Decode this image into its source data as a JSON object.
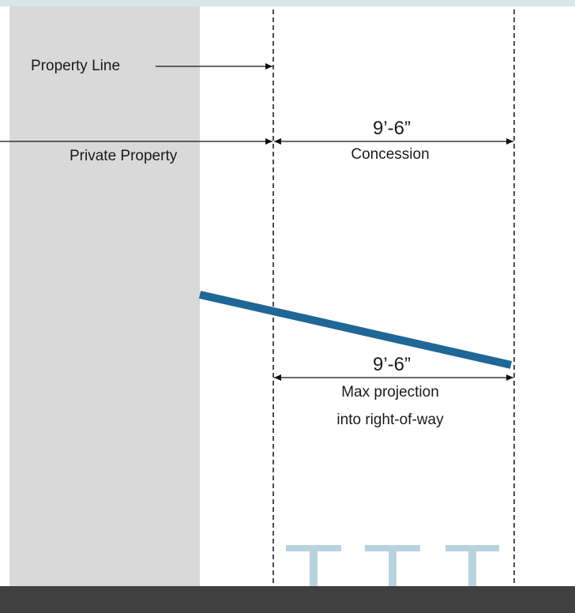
{
  "diagram": {
    "property_line_label": "Property Line",
    "private_property_label": "Private Property",
    "concession": {
      "dimension": "9’-6”",
      "label": "Concession"
    },
    "max_projection": {
      "dimension": "9’-6”",
      "label_line1": "Max projection",
      "label_line2": "into right-of-way"
    }
  },
  "colors": {
    "top_band": "#d8e6ec",
    "building": "#d9d9d9",
    "canopy": "#1f6796",
    "column_icons": "#b7d3e0",
    "ground_band": "#404040",
    "lines": "#111111"
  }
}
